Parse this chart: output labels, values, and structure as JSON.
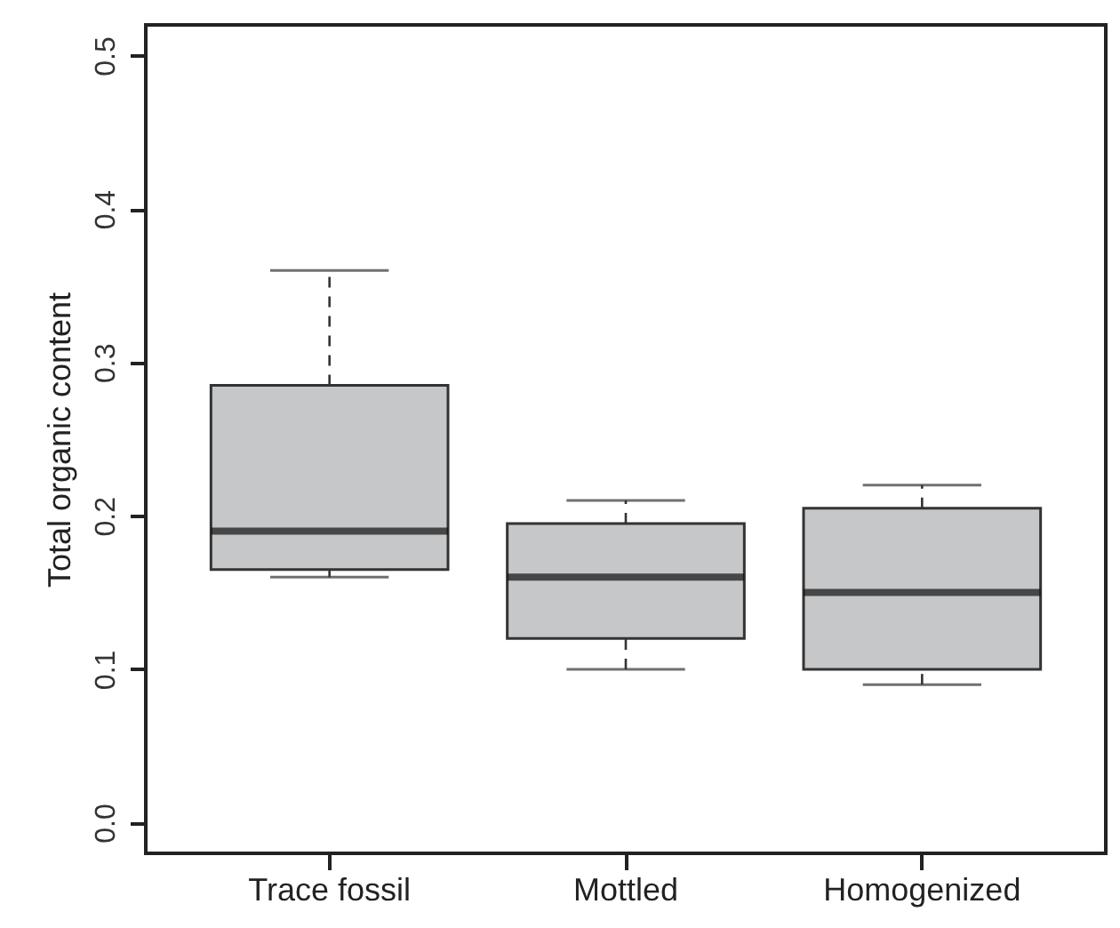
{
  "chart_data": {
    "type": "box",
    "ylabel": "Total organic content",
    "categories": [
      "Trace fossil",
      "Mottled",
      "Homogenized"
    ],
    "boxes": [
      {
        "low": 0.16,
        "q1": 0.165,
        "median": 0.19,
        "q3": 0.285,
        "high": 0.36
      },
      {
        "low": 0.1,
        "q1": 0.12,
        "median": 0.16,
        "q3": 0.195,
        "high": 0.21
      },
      {
        "low": 0.09,
        "q1": 0.1,
        "median": 0.15,
        "q3": 0.205,
        "high": 0.22
      }
    ],
    "color": "#c6c7c9",
    "ylim": [
      -0.02,
      0.52
    ],
    "yticks": [
      {
        "value": 0,
        "label": "0.0"
      },
      0.1,
      0.2,
      0.3,
      0.4,
      0.5
    ],
    "grid": false
  }
}
